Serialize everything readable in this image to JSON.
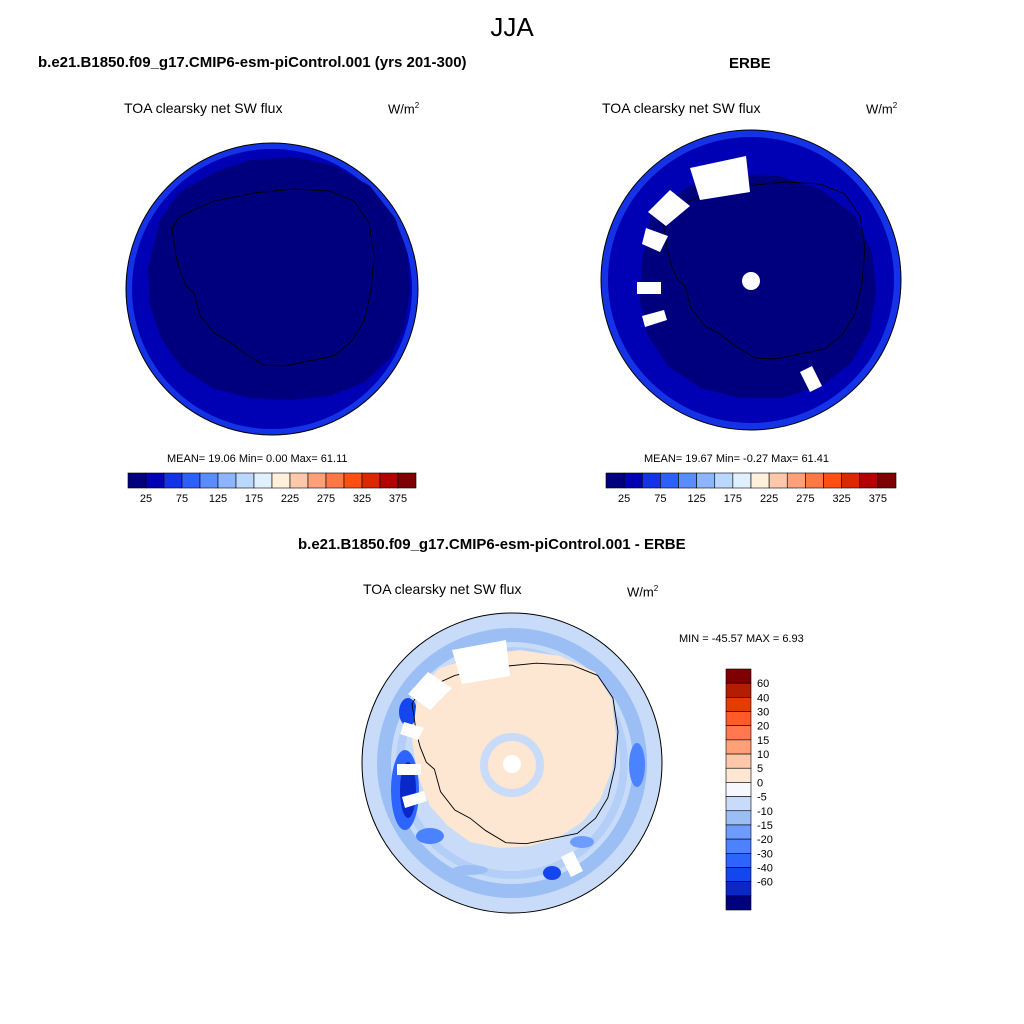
{
  "title": "JJA",
  "panels": [
    {
      "header": "b.e21.B1850.f09_g17.CMIP6-esm-piControl.001 (yrs 201-300)",
      "variable_label": "TOA clearsky net SW flux",
      "units_base": "W/m",
      "units_exp": "2",
      "stats": "MEAN=  19.06  Min=   0.00  Max=  61.11",
      "colorbar_ticks": [
        "25",
        "75",
        "125",
        "175",
        "225",
        "275",
        "325",
        "375"
      ]
    },
    {
      "header": "ERBE",
      "variable_label": "TOA clearsky net SW flux",
      "units_base": "W/m",
      "units_exp": "2",
      "stats": "MEAN=  19.67  Min=  -0.27  Max=  61.41",
      "colorbar_ticks": [
        "25",
        "75",
        "125",
        "175",
        "225",
        "275",
        "325",
        "375"
      ]
    },
    {
      "header": "b.e21.B1850.f09_g17.CMIP6-esm-piControl.001 - ERBE",
      "variable_label": "TOA clearsky net SW flux",
      "units_base": "W/m",
      "units_exp": "2",
      "stats": "MIN = -45.57 MAX =   6.93",
      "colorbar_labels": [
        "60",
        "40",
        "30",
        "20",
        "15",
        "10",
        "5",
        "0",
        "-5",
        "-10",
        "-15",
        "-20",
        "-30",
        "-40",
        "-60"
      ]
    }
  ],
  "chart_data": [
    {
      "type": "heatmap",
      "projection": "south-polar-stereographic",
      "season": "JJA",
      "levels": [
        25,
        50,
        75,
        100,
        125,
        150,
        175,
        200,
        225,
        250,
        275,
        300,
        325,
        350,
        375
      ],
      "colors": [
        "#00007f",
        "#0000b4",
        "#1432e6",
        "#2d5fff",
        "#5a8cff",
        "#8cb4ff",
        "#b9d7ff",
        "#e1f0ff",
        "#fff0dc",
        "#ffc8aa",
        "#ffa078",
        "#ff7846",
        "#ff5014",
        "#dc2800",
        "#b40000",
        "#7f0000"
      ],
      "mean": 19.06,
      "min": 0.0,
      "max": 61.11
    },
    {
      "type": "heatmap",
      "projection": "south-polar-stereographic",
      "season": "JJA",
      "levels": [
        25,
        50,
        75,
        100,
        125,
        150,
        175,
        200,
        225,
        250,
        275,
        300,
        325,
        350,
        375
      ],
      "colors": [
        "#00007f",
        "#0000b4",
        "#1432e6",
        "#2d5fff",
        "#5a8cff",
        "#8cb4ff",
        "#b9d7ff",
        "#e1f0ff",
        "#fff0dc",
        "#ffc8aa",
        "#ffa078",
        "#ff7846",
        "#ff5014",
        "#dc2800",
        "#b40000",
        "#7f0000"
      ],
      "mean": 19.67,
      "min": -0.27,
      "max": 61.41
    },
    {
      "type": "heatmap",
      "projection": "south-polar-stereographic",
      "season": "JJA",
      "levels": [
        -60,
        -40,
        -30,
        -20,
        -15,
        -10,
        -5,
        0,
        5,
        10,
        15,
        20,
        30,
        40,
        60
      ],
      "colors": [
        "#00007f",
        "#0a28c8",
        "#1446f0",
        "#2d64ff",
        "#4b82ff",
        "#6e9bff",
        "#9bbef5",
        "#c8dcfa",
        "#f5f8ff",
        "#fde6d2",
        "#ffc8aa",
        "#ffa078",
        "#ff7850",
        "#ff5a28",
        "#e63c00",
        "#b41e00",
        "#7f0000"
      ],
      "min": -45.57,
      "max": 6.93
    }
  ]
}
